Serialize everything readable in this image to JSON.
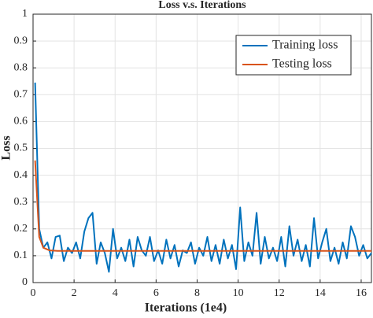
{
  "chart_data": {
    "type": "line",
    "title": "Loss v.s. Iterations",
    "xlabel": "Iterations (1e4)",
    "ylabel": "Loss",
    "xlim": [
      0,
      16.5
    ],
    "ylim": [
      0,
      1
    ],
    "xticks": [
      0,
      2,
      4,
      6,
      8,
      10,
      12,
      14,
      16
    ],
    "yticks": [
      0,
      0.1,
      0.2,
      0.3,
      0.4,
      0.5,
      0.6,
      0.7,
      0.8,
      0.9,
      1
    ],
    "grid": true,
    "legend": "upper right",
    "series": [
      {
        "name": "Training loss",
        "color": "#0072bd",
        "x": [
          0.1,
          0.3,
          0.5,
          0.7,
          0.9,
          1.1,
          1.3,
          1.5,
          1.7,
          1.9,
          2.1,
          2.3,
          2.5,
          2.7,
          2.9,
          3.1,
          3.3,
          3.5,
          3.7,
          3.9,
          4.1,
          4.3,
          4.5,
          4.7,
          4.9,
          5.1,
          5.3,
          5.5,
          5.7,
          5.9,
          6.1,
          6.3,
          6.5,
          6.7,
          6.9,
          7.1,
          7.3,
          7.5,
          7.7,
          7.9,
          8.1,
          8.3,
          8.5,
          8.7,
          8.9,
          9.1,
          9.3,
          9.5,
          9.7,
          9.9,
          10.1,
          10.3,
          10.5,
          10.7,
          10.9,
          11.1,
          11.3,
          11.5,
          11.7,
          11.9,
          12.1,
          12.3,
          12.5,
          12.7,
          12.9,
          13.1,
          13.3,
          13.5,
          13.7,
          13.9,
          14.1,
          14.3,
          14.5,
          14.7,
          14.9,
          15.1,
          15.3,
          15.5,
          15.7,
          15.9,
          16.1,
          16.3,
          16.5
        ],
        "values": [
          0.745,
          0.2,
          0.13,
          0.15,
          0.09,
          0.17,
          0.175,
          0.08,
          0.13,
          0.11,
          0.15,
          0.09,
          0.19,
          0.24,
          0.26,
          0.07,
          0.15,
          0.11,
          0.04,
          0.2,
          0.09,
          0.13,
          0.08,
          0.16,
          0.06,
          0.17,
          0.12,
          0.1,
          0.17,
          0.08,
          0.12,
          0.07,
          0.16,
          0.09,
          0.14,
          0.06,
          0.12,
          0.11,
          0.15,
          0.07,
          0.13,
          0.1,
          0.17,
          0.08,
          0.14,
          0.07,
          0.16,
          0.09,
          0.14,
          0.05,
          0.28,
          0.08,
          0.15,
          0.1,
          0.26,
          0.07,
          0.17,
          0.09,
          0.13,
          0.08,
          0.17,
          0.06,
          0.21,
          0.1,
          0.16,
          0.08,
          0.14,
          0.06,
          0.24,
          0.09,
          0.15,
          0.2,
          0.08,
          0.13,
          0.07,
          0.15,
          0.09,
          0.21,
          0.17,
          0.1,
          0.14,
          0.09,
          0.11
        ]
      },
      {
        "name": "Testing loss",
        "color": "#d95319",
        "x": [
          0.1,
          0.3,
          0.5,
          0.8,
          1.2,
          16.5
        ],
        "values": [
          0.455,
          0.17,
          0.13,
          0.12,
          0.118,
          0.118
        ]
      }
    ]
  }
}
